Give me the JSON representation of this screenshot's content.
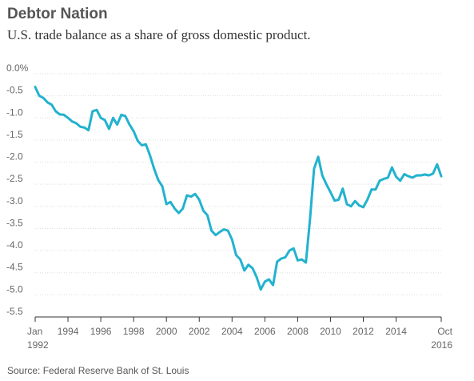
{
  "chart_data": {
    "type": "line",
    "title": "Debtor Nation",
    "subtitle": "U.S. trade balance as a share of gross domestic product.",
    "source": "Source: Federal Reserve Bank of St. Louis",
    "xlabel": "",
    "ylabel": "",
    "xlim": [
      1992.0,
      2016.75
    ],
    "ylim": [
      -5.5,
      0.0
    ],
    "yticks": [
      "0.0%",
      "-0.5",
      "-1.0",
      "-1.5",
      "-2.0",
      "-2.5",
      "-3.0",
      "-3.5",
      "-4.0",
      "-4.5",
      "-5.0",
      "-5.5"
    ],
    "ytick_values": [
      0.0,
      -0.5,
      -1.0,
      -1.5,
      -2.0,
      -2.5,
      -3.0,
      -3.5,
      -4.0,
      -4.5,
      -5.0,
      -5.5
    ],
    "xticks": [
      {
        "value": 1992.0,
        "line1": "Jan",
        "line2": "1992"
      },
      {
        "value": 1994.0,
        "line1": "1994",
        "line2": ""
      },
      {
        "value": 1996.0,
        "line1": "1996",
        "line2": ""
      },
      {
        "value": 1998.0,
        "line1": "1998",
        "line2": ""
      },
      {
        "value": 2000.0,
        "line1": "2000",
        "line2": ""
      },
      {
        "value": 2002.0,
        "line1": "2002",
        "line2": ""
      },
      {
        "value": 2004.0,
        "line1": "2004",
        "line2": ""
      },
      {
        "value": 2006.0,
        "line1": "2006",
        "line2": ""
      },
      {
        "value": 2008.0,
        "line1": "2008",
        "line2": ""
      },
      {
        "value": 2010.0,
        "line1": "2010",
        "line2": ""
      },
      {
        "value": 2012.0,
        "line1": "2012",
        "line2": ""
      },
      {
        "value": 2014.0,
        "line1": "2014",
        "line2": ""
      },
      {
        "value": 2016.75,
        "line1": "Oct",
        "line2": "2016"
      }
    ],
    "grid": true,
    "legend": "none",
    "line_color": "#22b2cf",
    "series": [
      {
        "x": [
          1992.0,
          1992.25,
          1992.5,
          1992.75,
          1993.0,
          1993.25,
          1993.5,
          1993.75,
          1994.0,
          1994.25,
          1994.5,
          1994.75,
          1995.0,
          1995.25,
          1995.5,
          1995.75,
          1996.0,
          1996.25,
          1996.5,
          1996.75,
          1997.0,
          1997.25,
          1997.5,
          1997.75,
          1998.0,
          1998.25,
          1998.5,
          1998.75,
          1999.0,
          1999.25,
          1999.5,
          1999.75,
          2000.0,
          2000.25,
          2000.5,
          2000.75,
          2001.0,
          2001.25,
          2001.5,
          2001.75,
          2002.0,
          2002.25,
          2002.5,
          2002.75,
          2003.0,
          2003.25,
          2003.5,
          2003.75,
          2004.0,
          2004.25,
          2004.5,
          2004.75,
          2005.0,
          2005.25,
          2005.5,
          2005.75,
          2006.0,
          2006.25,
          2006.5,
          2006.75,
          2007.0,
          2007.25,
          2007.5,
          2007.75,
          2008.0,
          2008.25,
          2008.5,
          2008.75,
          2009.0,
          2009.25,
          2009.5,
          2009.75,
          2010.0,
          2010.25,
          2010.5,
          2010.75,
          2011.0,
          2011.25,
          2011.5,
          2011.75,
          2012.0,
          2012.25,
          2012.5,
          2012.75,
          2013.0,
          2013.25,
          2013.5,
          2013.75,
          2014.0,
          2014.25,
          2014.5,
          2014.75,
          2015.0,
          2015.25,
          2015.5,
          2015.75,
          2016.0,
          2016.25,
          2016.5,
          2016.75
        ],
        "values": [
          -0.3,
          -0.5,
          -0.55,
          -0.65,
          -0.7,
          -0.85,
          -0.92,
          -0.93,
          -1.0,
          -1.08,
          -1.12,
          -1.2,
          -1.22,
          -1.28,
          -0.85,
          -0.82,
          -1.0,
          -1.05,
          -1.25,
          -1.0,
          -1.15,
          -0.93,
          -0.96,
          -1.15,
          -1.3,
          -1.52,
          -1.62,
          -1.6,
          -1.85,
          -2.15,
          -2.4,
          -2.55,
          -2.95,
          -2.9,
          -3.05,
          -3.15,
          -3.05,
          -2.75,
          -2.78,
          -2.72,
          -2.85,
          -3.1,
          -3.2,
          -3.55,
          -3.65,
          -3.58,
          -3.52,
          -3.55,
          -3.75,
          -4.1,
          -4.2,
          -4.45,
          -4.32,
          -4.4,
          -4.6,
          -4.88,
          -4.7,
          -4.65,
          -4.78,
          -4.25,
          -4.18,
          -4.15,
          -4.0,
          -3.95,
          -4.22,
          -4.2,
          -4.27,
          -3.3,
          -2.15,
          -1.88,
          -2.3,
          -2.5,
          -2.68,
          -2.87,
          -2.85,
          -2.6,
          -2.95,
          -3.0,
          -2.88,
          -2.98,
          -3.02,
          -2.85,
          -2.62,
          -2.62,
          -2.42,
          -2.38,
          -2.35,
          -2.12,
          -2.33,
          -2.42,
          -2.27,
          -2.32,
          -2.35,
          -2.3,
          -2.3,
          -2.28,
          -2.3,
          -2.26,
          -2.05,
          -2.32
        ]
      }
    ]
  }
}
